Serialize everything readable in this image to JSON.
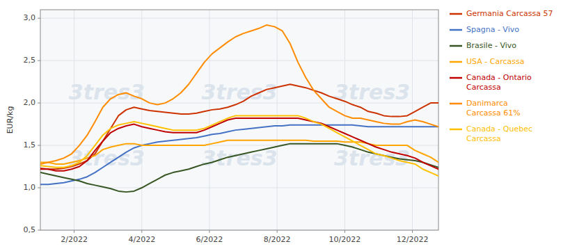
{
  "chart_data": {
    "type": "line",
    "y_label": "EUR/kg",
    "x": [
      1,
      2,
      3,
      4,
      5,
      6,
      7,
      8,
      9,
      10,
      11,
      12,
      13,
      14,
      15,
      16,
      17,
      18,
      19,
      20,
      21,
      22,
      23,
      24,
      25,
      26,
      27,
      28,
      29,
      30,
      31,
      32,
      33,
      34,
      35,
      36,
      37,
      38,
      39,
      40,
      41,
      42,
      43,
      44,
      45,
      46,
      47,
      48,
      49,
      50,
      51,
      52
    ],
    "xlim": [
      1,
      52
    ],
    "xticks": [
      {
        "value": 5.33,
        "label": "2/2022"
      },
      {
        "value": 14.0,
        "label": "4/2022"
      },
      {
        "value": 22.66,
        "label": "6/2022"
      },
      {
        "value": 31.33,
        "label": "8/2022"
      },
      {
        "value": 40.0,
        "label": "10/2022"
      },
      {
        "value": 48.66,
        "label": "12/2022"
      }
    ],
    "ylim": [
      0.5,
      3.1
    ],
    "yticks": [
      {
        "value": 0.5,
        "label": "0,5"
      },
      {
        "value": 1.0,
        "label": "1,0"
      },
      {
        "value": 1.5,
        "label": "1,5"
      },
      {
        "value": 2.0,
        "label": "2,0"
      },
      {
        "value": 2.5,
        "label": "2,5"
      },
      {
        "value": 3.0,
        "label": "3,0"
      }
    ],
    "grid": true,
    "legend": "right",
    "annotations": [
      "3tres3",
      "3tres3",
      "3tres3",
      "3tres3",
      "3tres3",
      "3tres3"
    ],
    "series": [
      {
        "name": "Germania Carcassa 57",
        "color": "#cc3300",
        "values": [
          1.23,
          1.22,
          1.22,
          1.23,
          1.25,
          1.28,
          1.32,
          1.4,
          1.55,
          1.7,
          1.85,
          1.92,
          1.95,
          1.93,
          1.91,
          1.9,
          1.89,
          1.88,
          1.87,
          1.87,
          1.88,
          1.9,
          1.92,
          1.93,
          1.95,
          1.98,
          2.02,
          2.08,
          2.12,
          2.16,
          2.18,
          2.2,
          2.22,
          2.2,
          2.18,
          2.15,
          2.12,
          2.08,
          2.05,
          2.02,
          1.98,
          1.95,
          1.9,
          1.88,
          1.85,
          1.84,
          1.84,
          1.85,
          1.9,
          1.95,
          2.0,
          2.0
        ]
      },
      {
        "name": "Spagna - Vivo",
        "color": "#4472c4",
        "values": [
          1.04,
          1.04,
          1.05,
          1.06,
          1.08,
          1.1,
          1.13,
          1.18,
          1.24,
          1.3,
          1.36,
          1.42,
          1.47,
          1.5,
          1.52,
          1.54,
          1.55,
          1.56,
          1.57,
          1.58,
          1.59,
          1.61,
          1.63,
          1.64,
          1.66,
          1.68,
          1.69,
          1.7,
          1.71,
          1.72,
          1.73,
          1.73,
          1.74,
          1.74,
          1.74,
          1.74,
          1.74,
          1.74,
          1.74,
          1.74,
          1.74,
          1.73,
          1.72,
          1.72,
          1.72,
          1.72,
          1.72,
          1.72,
          1.72,
          1.72,
          1.72,
          1.72
        ]
      },
      {
        "name": "Brasile - Vivo",
        "color": "#375623",
        "values": [
          1.18,
          1.16,
          1.14,
          1.12,
          1.1,
          1.08,
          1.05,
          1.03,
          1.01,
          0.99,
          0.96,
          0.95,
          0.96,
          1.0,
          1.05,
          1.1,
          1.15,
          1.18,
          1.2,
          1.22,
          1.25,
          1.28,
          1.3,
          1.33,
          1.36,
          1.38,
          1.4,
          1.42,
          1.44,
          1.46,
          1.48,
          1.5,
          1.52,
          1.52,
          1.52,
          1.52,
          1.52,
          1.52,
          1.52,
          1.5,
          1.48,
          1.45,
          1.42,
          1.4,
          1.38,
          1.36,
          1.34,
          1.33,
          1.32,
          1.3,
          1.27,
          1.24
        ]
      },
      {
        "name": "USA - Carcassa",
        "color": "#ffa500",
        "values": [
          1.3,
          1.3,
          1.28,
          1.28,
          1.3,
          1.32,
          1.35,
          1.38,
          1.45,
          1.48,
          1.5,
          1.52,
          1.52,
          1.5,
          1.5,
          1.5,
          1.5,
          1.5,
          1.5,
          1.5,
          1.5,
          1.5,
          1.52,
          1.54,
          1.56,
          1.56,
          1.56,
          1.56,
          1.56,
          1.56,
          1.56,
          1.56,
          1.56,
          1.56,
          1.56,
          1.55,
          1.55,
          1.55,
          1.55,
          1.54,
          1.54,
          1.54,
          1.52,
          1.5,
          1.5,
          1.5,
          1.5,
          1.5,
          1.44,
          1.4,
          1.36,
          1.3
        ]
      },
      {
        "name": "Canada - Ontario\nCarcassa",
        "color": "#c00000",
        "values": [
          1.22,
          1.22,
          1.2,
          1.2,
          1.22,
          1.25,
          1.32,
          1.44,
          1.55,
          1.65,
          1.7,
          1.73,
          1.75,
          1.72,
          1.7,
          1.68,
          1.66,
          1.65,
          1.65,
          1.65,
          1.65,
          1.68,
          1.72,
          1.76,
          1.8,
          1.82,
          1.82,
          1.82,
          1.82,
          1.82,
          1.82,
          1.82,
          1.82,
          1.82,
          1.8,
          1.78,
          1.76,
          1.72,
          1.68,
          1.64,
          1.6,
          1.56,
          1.52,
          1.48,
          1.45,
          1.42,
          1.4,
          1.38,
          1.35,
          1.3,
          1.26,
          1.22
        ]
      },
      {
        "name": "Danimarca\nCarcassa 61%",
        "color": "#ff8c00",
        "values": [
          1.28,
          1.3,
          1.32,
          1.35,
          1.4,
          1.5,
          1.62,
          1.78,
          1.95,
          2.05,
          2.1,
          2.12,
          2.08,
          2.05,
          2.0,
          1.98,
          2.0,
          2.05,
          2.12,
          2.22,
          2.35,
          2.48,
          2.58,
          2.65,
          2.72,
          2.78,
          2.82,
          2.85,
          2.88,
          2.92,
          2.9,
          2.85,
          2.7,
          2.48,
          2.3,
          2.15,
          2.05,
          1.95,
          1.9,
          1.85,
          1.82,
          1.82,
          1.8,
          1.78,
          1.76,
          1.75,
          1.75,
          1.78,
          1.8,
          1.78,
          1.75,
          1.72
        ]
      },
      {
        "name": "Canada - Quebec\nCarcassa",
        "color": "#ffc000",
        "values": [
          1.26,
          1.25,
          1.24,
          1.24,
          1.26,
          1.3,
          1.38,
          1.5,
          1.62,
          1.7,
          1.74,
          1.76,
          1.78,
          1.76,
          1.74,
          1.72,
          1.7,
          1.68,
          1.68,
          1.68,
          1.68,
          1.7,
          1.74,
          1.78,
          1.82,
          1.85,
          1.85,
          1.85,
          1.85,
          1.85,
          1.85,
          1.85,
          1.85,
          1.85,
          1.82,
          1.78,
          1.75,
          1.7,
          1.65,
          1.6,
          1.55,
          1.5,
          1.45,
          1.4,
          1.38,
          1.35,
          1.32,
          1.3,
          1.28,
          1.22,
          1.18,
          1.14
        ]
      }
    ]
  }
}
